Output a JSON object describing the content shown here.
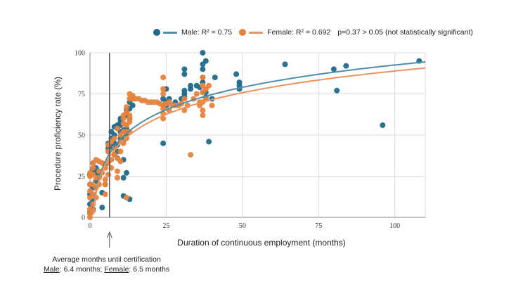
{
  "colors": {
    "male": "#1f6a8a",
    "female": "#e8833d",
    "male_fit": "#4d8eac",
    "female_fit": "#f0935a",
    "grid": "#dcdcdc",
    "axis": "#888888"
  },
  "legend": {
    "male_label": "Male: R² = 0.75",
    "female_label": "Female: R² = 0.692",
    "stat_note": "p=0.37 > 0.05 (not statistically significant)"
  },
  "note": {
    "line1": "Average months until certification",
    "male_word": "Male",
    "male_value": ": 6.4 months; ",
    "female_word": "Female",
    "female_value": ": 6.5 months"
  },
  "chart_data": {
    "type": "scatter",
    "xlabel": "Duration of continuous employment (months)",
    "ylabel": "Procedure proficiency rate (%)",
    "xlim": [
      0,
      110
    ],
    "ylim": [
      0,
      100
    ],
    "xticks": [
      "0",
      "25",
      "50",
      "75",
      "100"
    ],
    "xtick_values": [
      0,
      25,
      50,
      75,
      100
    ],
    "yticks": [
      "0",
      "25",
      "50",
      "75",
      "100"
    ],
    "ytick_values": [
      0,
      25,
      50,
      75,
      100
    ],
    "reference_line": {
      "x": 6.4,
      "label": "Average months until certification"
    },
    "series": [
      {
        "name": "Male",
        "r2": 0.75,
        "fit": {
          "type": "log",
          "a": 2.3,
          "b": 19.6
        },
        "points": [
          [
            0,
            3
          ],
          [
            0,
            8
          ],
          [
            0,
            14
          ],
          [
            0,
            20
          ],
          [
            0,
            26
          ],
          [
            1,
            5
          ],
          [
            1,
            10
          ],
          [
            1,
            18
          ],
          [
            1,
            29
          ],
          [
            1,
            33
          ],
          [
            2,
            22
          ],
          [
            2,
            27
          ],
          [
            2,
            30
          ],
          [
            3,
            25
          ],
          [
            3,
            28
          ],
          [
            4,
            15
          ],
          [
            4,
            6
          ],
          [
            5,
            20
          ],
          [
            5,
            32
          ],
          [
            6,
            40
          ],
          [
            6,
            42
          ],
          [
            6,
            45
          ],
          [
            7,
            48
          ],
          [
            7,
            43
          ],
          [
            7,
            52
          ],
          [
            8,
            50
          ],
          [
            8,
            38
          ],
          [
            8,
            45
          ],
          [
            8,
            55
          ],
          [
            9,
            54
          ],
          [
            9,
            56
          ],
          [
            9,
            40
          ],
          [
            9,
            36
          ],
          [
            9,
            44
          ],
          [
            10,
            52
          ],
          [
            10,
            48
          ],
          [
            10,
            56
          ],
          [
            10,
            60
          ],
          [
            10,
            58
          ],
          [
            11,
            53
          ],
          [
            11,
            47
          ],
          [
            11,
            13
          ],
          [
            11,
            24
          ],
          [
            11,
            35
          ],
          [
            12,
            54
          ],
          [
            12,
            50
          ],
          [
            12,
            27
          ],
          [
            12,
            65
          ],
          [
            12,
            62
          ],
          [
            13,
            66
          ],
          [
            13,
            70
          ],
          [
            13,
            11
          ],
          [
            13,
            60
          ],
          [
            14,
            68
          ],
          [
            14,
            72
          ],
          [
            24,
            45
          ],
          [
            24,
            68
          ],
          [
            24,
            72
          ],
          [
            25,
            70
          ],
          [
            25,
            78
          ],
          [
            25,
            68
          ],
          [
            26,
            72
          ],
          [
            28,
            70
          ],
          [
            30,
            72
          ],
          [
            31,
            73
          ],
          [
            31,
            75
          ],
          [
            31,
            77
          ],
          [
            31,
            87
          ],
          [
            31,
            90
          ],
          [
            33,
            78
          ],
          [
            33,
            80
          ],
          [
            35,
            80
          ],
          [
            36,
            79
          ],
          [
            37,
            90
          ],
          [
            37,
            100
          ],
          [
            37,
            93
          ],
          [
            37,
            85
          ],
          [
            37,
            82
          ],
          [
            37,
            76
          ],
          [
            38,
            95
          ],
          [
            38,
            73
          ],
          [
            38,
            76
          ],
          [
            39,
            46
          ],
          [
            40,
            72
          ],
          [
            41,
            85
          ],
          [
            48,
            87
          ],
          [
            49,
            82
          ],
          [
            49,
            80
          ],
          [
            49,
            78
          ],
          [
            64,
            93
          ],
          [
            80,
            90
          ],
          [
            81,
            77
          ],
          [
            84,
            92
          ],
          [
            96,
            56
          ],
          [
            108,
            95
          ]
        ]
      },
      {
        "name": "Female",
        "r2": 0.692,
        "fit": {
          "type": "log",
          "a": 1.4,
          "b": 19.0
        },
        "points": [
          [
            0,
            0
          ],
          [
            0,
            2
          ],
          [
            0,
            5
          ],
          [
            0,
            12
          ],
          [
            0,
            16
          ],
          [
            0,
            20
          ],
          [
            0,
            25
          ],
          [
            0,
            27
          ],
          [
            1,
            4
          ],
          [
            1,
            8
          ],
          [
            1,
            14
          ],
          [
            1,
            20
          ],
          [
            1,
            26
          ],
          [
            1,
            30
          ],
          [
            1,
            33
          ],
          [
            2,
            12
          ],
          [
            2,
            18
          ],
          [
            2,
            24
          ],
          [
            2,
            35
          ],
          [
            3,
            20
          ],
          [
            3,
            24
          ],
          [
            3,
            28
          ],
          [
            3,
            34
          ],
          [
            4,
            27
          ],
          [
            4,
            33
          ],
          [
            5,
            14
          ],
          [
            5,
            20
          ],
          [
            5,
            23
          ],
          [
            5,
            30
          ],
          [
            6,
            26
          ],
          [
            6,
            33
          ],
          [
            6,
            40
          ],
          [
            6,
            44
          ],
          [
            7,
            46
          ],
          [
            7,
            30
          ],
          [
            7,
            35
          ],
          [
            8,
            38
          ],
          [
            8,
            42
          ],
          [
            8,
            48
          ],
          [
            9,
            24
          ],
          [
            9,
            36
          ],
          [
            9,
            28
          ],
          [
            9,
            54
          ],
          [
            10,
            50
          ],
          [
            10,
            34
          ],
          [
            10,
            40
          ],
          [
            10,
            46
          ],
          [
            11,
            45
          ],
          [
            11,
            52
          ],
          [
            11,
            57
          ],
          [
            11,
            60
          ],
          [
            11,
            62
          ],
          [
            12,
            12
          ],
          [
            12,
            48
          ],
          [
            12,
            52
          ],
          [
            12,
            56
          ],
          [
            12,
            64
          ],
          [
            12,
            67
          ],
          [
            13,
            52
          ],
          [
            13,
            58
          ],
          [
            13,
            60
          ],
          [
            13,
            62
          ],
          [
            13,
            72
          ],
          [
            13,
            75
          ],
          [
            14,
            72
          ],
          [
            14,
            74
          ],
          [
            15,
            72
          ],
          [
            16,
            72
          ],
          [
            17,
            71
          ],
          [
            18,
            71
          ],
          [
            19,
            70
          ],
          [
            20,
            70
          ],
          [
            21,
            70
          ],
          [
            22,
            70
          ],
          [
            23,
            69
          ],
          [
            24,
            66
          ],
          [
            24,
            60
          ],
          [
            24,
            63
          ],
          [
            24,
            68
          ],
          [
            24,
            75
          ],
          [
            24,
            78
          ],
          [
            24,
            85
          ],
          [
            25,
            69
          ],
          [
            26,
            65
          ],
          [
            26,
            70
          ],
          [
            27,
            68
          ],
          [
            28,
            68
          ],
          [
            29,
            68
          ],
          [
            30,
            69
          ],
          [
            31,
            72
          ],
          [
            31,
            65
          ],
          [
            32,
            68
          ],
          [
            33,
            38
          ],
          [
            34,
            72
          ],
          [
            35,
            75
          ],
          [
            36,
            70
          ],
          [
            36,
            68
          ],
          [
            37,
            62
          ],
          [
            37,
            65
          ],
          [
            37,
            70
          ],
          [
            37,
            76
          ],
          [
            37,
            80
          ],
          [
            37,
            85
          ],
          [
            38,
            72
          ],
          [
            38,
            78
          ],
          [
            39,
            80
          ],
          [
            40,
            68
          ]
        ]
      }
    ]
  }
}
